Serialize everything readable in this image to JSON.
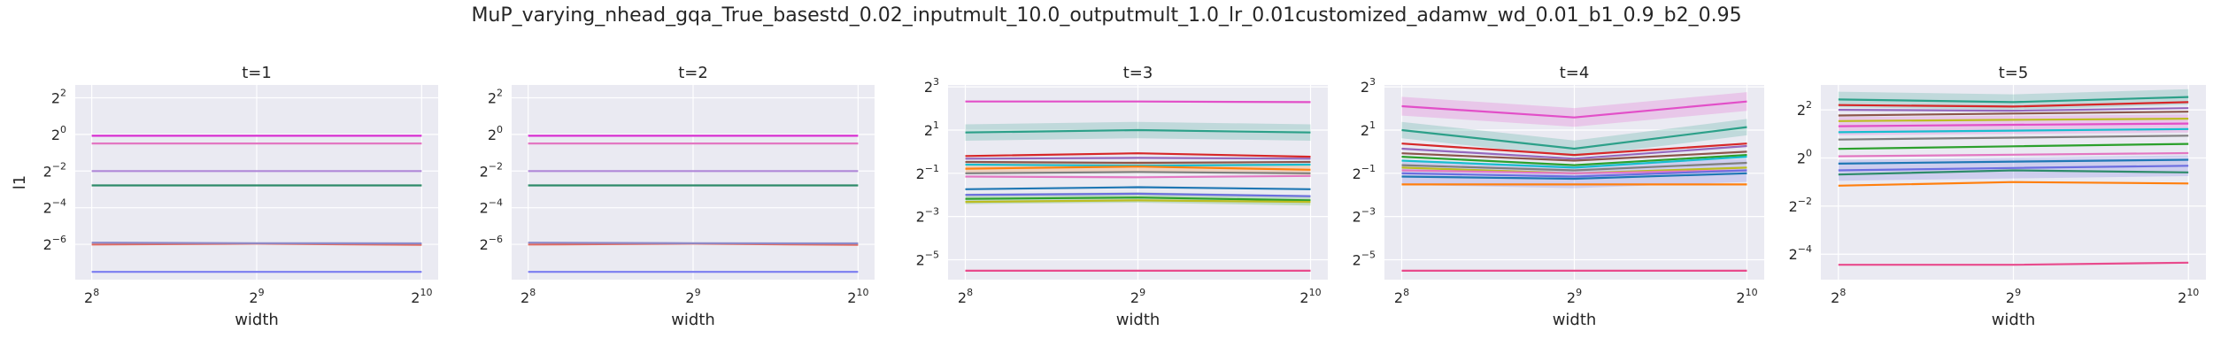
{
  "figure": {
    "suptitle": "MuP_varying_nhead_gqa_True_basestd_0.02_inputmult_10.0_outputmult_1.0_lr_0.01customized_adamw_wd_0.01_b1_0.9_b2_0.95",
    "background": "#ffffff",
    "axes_facecolor": "#eaeaf2",
    "grid_color": "#ffffff"
  },
  "chart_data": [
    {
      "type": "line",
      "title": "t=1",
      "xlabel": "width",
      "ylabel": "l1",
      "xscale": "log2",
      "yscale": "log2",
      "x": [
        256,
        512,
        1024
      ],
      "xticks": [
        {
          "base": "2",
          "exp": "8",
          "v": 256
        },
        {
          "base": "2",
          "exp": "9",
          "v": 512
        },
        {
          "base": "2",
          "exp": "10",
          "v": 1024
        }
      ],
      "yticks": [
        {
          "base": "2",
          "exp": "−6",
          "v": 0.015625
        },
        {
          "base": "2",
          "exp": "−4",
          "v": 0.0625
        },
        {
          "base": "2",
          "exp": "−2",
          "v": 0.25
        },
        {
          "base": "2",
          "exp": "0",
          "v": 1
        },
        {
          "base": "2",
          "exp": "2",
          "v": 4
        }
      ],
      "ylim": [
        0.0041,
        6.5
      ],
      "grid": true,
      "series": [
        {
          "color": "#e377c2",
          "values": [
            0.71,
            0.71,
            0.71
          ]
        },
        {
          "color": "#d62ed1",
          "values": [
            0.95,
            0.95,
            0.95
          ]
        },
        {
          "color": "#b088d8",
          "values": [
            0.25,
            0.25,
            0.25
          ]
        },
        {
          "color": "#2e8b6a",
          "values": [
            0.145,
            0.145,
            0.145
          ]
        },
        {
          "color": "#e26a5f",
          "values": [
            0.0155,
            0.016,
            0.0153
          ]
        },
        {
          "color": "#8c8ac9",
          "values": [
            0.0166,
            0.0163,
            0.0162
          ]
        },
        {
          "color": "#7b7cf0",
          "values": [
            0.0055,
            0.0055,
            0.0055
          ]
        }
      ]
    },
    {
      "type": "line",
      "title": "t=2",
      "xlabel": "width",
      "ylabel": "",
      "xscale": "log2",
      "yscale": "log2",
      "x": [
        256,
        512,
        1024
      ],
      "xticks": [
        {
          "base": "2",
          "exp": "8",
          "v": 256
        },
        {
          "base": "2",
          "exp": "9",
          "v": 512
        },
        {
          "base": "2",
          "exp": "10",
          "v": 1024
        }
      ],
      "yticks": [
        {
          "base": "2",
          "exp": "−6",
          "v": 0.015625
        },
        {
          "base": "2",
          "exp": "−4",
          "v": 0.0625
        },
        {
          "base": "2",
          "exp": "−2",
          "v": 0.25
        },
        {
          "base": "2",
          "exp": "0",
          "v": 1
        },
        {
          "base": "2",
          "exp": "2",
          "v": 4
        }
      ],
      "ylim": [
        0.0041,
        6.5
      ],
      "grid": true,
      "series": [
        {
          "color": "#e377c2",
          "values": [
            0.71,
            0.71,
            0.71
          ]
        },
        {
          "color": "#d62ed1",
          "values": [
            0.95,
            0.95,
            0.95
          ]
        },
        {
          "color": "#b088d8",
          "values": [
            0.25,
            0.25,
            0.25
          ]
        },
        {
          "color": "#2e8b6a",
          "values": [
            0.145,
            0.145,
            0.145
          ]
        },
        {
          "color": "#e26a5f",
          "values": [
            0.0155,
            0.016,
            0.0153
          ]
        },
        {
          "color": "#8c8ac9",
          "values": [
            0.0166,
            0.0163,
            0.0162
          ]
        },
        {
          "color": "#7b7cf0",
          "values": [
            0.0055,
            0.0055,
            0.0055
          ]
        }
      ]
    },
    {
      "type": "line",
      "title": "t=3",
      "xlabel": "width",
      "ylabel": "",
      "xscale": "log2",
      "yscale": "log2",
      "x": [
        256,
        512,
        1024
      ],
      "xticks": [
        {
          "base": "2",
          "exp": "8",
          "v": 256
        },
        {
          "base": "2",
          "exp": "9",
          "v": 512
        },
        {
          "base": "2",
          "exp": "10",
          "v": 1024
        }
      ],
      "yticks": [
        {
          "base": "2",
          "exp": "−5",
          "v": 0.03125
        },
        {
          "base": "2",
          "exp": "−3",
          "v": 0.125
        },
        {
          "base": "2",
          "exp": "−1",
          "v": 0.5
        },
        {
          "base": "2",
          "exp": "1",
          "v": 2
        },
        {
          "base": "2",
          "exp": "3",
          "v": 8
        }
      ],
      "ylim": [
        0.0165,
        8.5
      ],
      "grid": true,
      "series": [
        {
          "color": "#e24fc8",
          "values": [
            5.0,
            5.0,
            4.9
          ]
        },
        {
          "color": "#2ca089",
          "values": [
            1.85,
            2.0,
            1.85
          ],
          "band": [
            0.3,
            0.3,
            0.3
          ]
        },
        {
          "color": "#d62728",
          "values": [
            0.87,
            0.95,
            0.85
          ]
        },
        {
          "color": "#9467bd",
          "values": [
            0.8,
            0.82,
            0.8
          ]
        },
        {
          "color": "#8c564b",
          "values": [
            0.72,
            0.7,
            0.72
          ]
        },
        {
          "color": "#17becf",
          "values": [
            0.66,
            0.64,
            0.66
          ]
        },
        {
          "color": "#ff7f0e",
          "values": [
            0.58,
            0.62,
            0.56
          ],
          "band": [
            0.18,
            0.18,
            0.18
          ]
        },
        {
          "color": "#7f7f7f",
          "values": [
            0.5,
            0.52,
            0.5
          ]
        },
        {
          "color": "#e377c2",
          "values": [
            0.45,
            0.44,
            0.46
          ]
        },
        {
          "color": "#1f77b4",
          "values": [
            0.3,
            0.32,
            0.3
          ]
        },
        {
          "color": "#6c6ee0",
          "values": [
            0.25,
            0.26,
            0.24
          ]
        },
        {
          "color": "#2ca02c",
          "values": [
            0.22,
            0.23,
            0.21
          ],
          "band": [
            0.18,
            0.18,
            0.18
          ]
        },
        {
          "color": "#bcbd22",
          "values": [
            0.2,
            0.21,
            0.2
          ]
        },
        {
          "color": "#e84a8c",
          "values": [
            0.022,
            0.022,
            0.022
          ]
        }
      ]
    },
    {
      "type": "line",
      "title": "t=4",
      "xlabel": "width",
      "ylabel": "",
      "xscale": "log2",
      "yscale": "log2",
      "x": [
        256,
        512,
        1024
      ],
      "xticks": [
        {
          "base": "2",
          "exp": "8",
          "v": 256
        },
        {
          "base": "2",
          "exp": "9",
          "v": 512
        },
        {
          "base": "2",
          "exp": "10",
          "v": 1024
        }
      ],
      "yticks": [
        {
          "base": "2",
          "exp": "−5",
          "v": 0.03125
        },
        {
          "base": "2",
          "exp": "−3",
          "v": 0.125
        },
        {
          "base": "2",
          "exp": "−1",
          "v": 0.5
        },
        {
          "base": "2",
          "exp": "1",
          "v": 2
        },
        {
          "base": "2",
          "exp": "3",
          "v": 8
        }
      ],
      "ylim": [
        0.0165,
        8.5
      ],
      "grid": true,
      "series": [
        {
          "color": "#e24fc8",
          "values": [
            4.3,
            3.0,
            5.0
          ],
          "band": [
            0.35,
            0.35,
            0.35
          ]
        },
        {
          "color": "#2ca089",
          "values": [
            2.0,
            1.1,
            2.2
          ],
          "band": [
            0.3,
            0.3,
            0.3
          ]
        },
        {
          "color": "#d62728",
          "values": [
            1.3,
            0.9,
            1.3
          ]
        },
        {
          "color": "#9467bd",
          "values": [
            1.1,
            0.8,
            1.2
          ]
        },
        {
          "color": "#8c564b",
          "values": [
            0.95,
            0.75,
            1.0
          ]
        },
        {
          "color": "#2ca02c",
          "values": [
            0.85,
            0.65,
            0.9
          ]
        },
        {
          "color": "#17becf",
          "values": [
            0.75,
            0.6,
            0.85
          ]
        },
        {
          "color": "#7f7f7f",
          "values": [
            0.65,
            0.55,
            0.7
          ]
        },
        {
          "color": "#bcbd22",
          "values": [
            0.6,
            0.5,
            0.6
          ]
        },
        {
          "color": "#e377c2",
          "values": [
            0.55,
            0.5,
            0.55
          ]
        },
        {
          "color": "#6c6ee0",
          "values": [
            0.5,
            0.45,
            0.55
          ],
          "band": [
            0.45,
            0.45,
            0.45
          ]
        },
        {
          "color": "#1f77b4",
          "values": [
            0.45,
            0.42,
            0.5
          ]
        },
        {
          "color": "#ff7f0e",
          "values": [
            0.35,
            0.35,
            0.35
          ]
        },
        {
          "color": "#e84a8c",
          "values": [
            0.022,
            0.022,
            0.022
          ]
        }
      ]
    },
    {
      "type": "line",
      "title": "t=5",
      "xlabel": "width",
      "ylabel": "",
      "xscale": "log2",
      "yscale": "log2",
      "x": [
        256,
        512,
        1024
      ],
      "xticks": [
        {
          "base": "2",
          "exp": "8",
          "v": 256
        },
        {
          "base": "2",
          "exp": "9",
          "v": 512
        },
        {
          "base": "2",
          "exp": "10",
          "v": 1024
        }
      ],
      "yticks": [
        {
          "base": "2",
          "exp": "−4",
          "v": 0.0625
        },
        {
          "base": "2",
          "exp": "−2",
          "v": 0.25
        },
        {
          "base": "2",
          "exp": "0",
          "v": 1
        },
        {
          "base": "2",
          "exp": "2",
          "v": 4
        }
      ],
      "ylim": [
        0.03,
        8.2
      ],
      "grid": true,
      "series": [
        {
          "color": "#2ca089",
          "values": [
            5.4,
            5.0,
            5.8
          ],
          "band": [
            0.25,
            0.25,
            0.25
          ]
        },
        {
          "color": "#d62728",
          "values": [
            4.6,
            4.4,
            5.0
          ]
        },
        {
          "color": "#9467bd",
          "values": [
            4.0,
            3.9,
            4.2
          ]
        },
        {
          "color": "#8c564b",
          "values": [
            3.4,
            3.6,
            3.8
          ]
        },
        {
          "color": "#bcbd22",
          "values": [
            2.9,
            3.0,
            3.1
          ]
        },
        {
          "color": "#e24fc8",
          "values": [
            2.5,
            2.6,
            2.7
          ],
          "band": [
            0.3,
            0.3,
            0.3
          ]
        },
        {
          "color": "#17becf",
          "values": [
            2.1,
            2.2,
            2.3
          ]
        },
        {
          "color": "#7f7f7f",
          "values": [
            1.7,
            1.8,
            1.9
          ]
        },
        {
          "color": "#2ca02c",
          "values": [
            1.3,
            1.4,
            1.5
          ]
        },
        {
          "color": "#e377c2",
          "values": [
            1.05,
            1.1,
            1.15
          ]
        },
        {
          "color": "#1f77b4",
          "values": [
            0.85,
            0.9,
            0.95
          ]
        },
        {
          "color": "#6c6ee0",
          "values": [
            0.7,
            0.75,
            0.8
          ],
          "band": [
            0.35,
            0.35,
            0.35
          ]
        },
        {
          "color": "#2e8b6a",
          "values": [
            0.62,
            0.7,
            0.66
          ]
        },
        {
          "color": "#ff7f0e",
          "values": [
            0.45,
            0.5,
            0.48
          ]
        },
        {
          "color": "#e84a8c",
          "values": [
            0.046,
            0.046,
            0.049
          ]
        }
      ]
    }
  ]
}
